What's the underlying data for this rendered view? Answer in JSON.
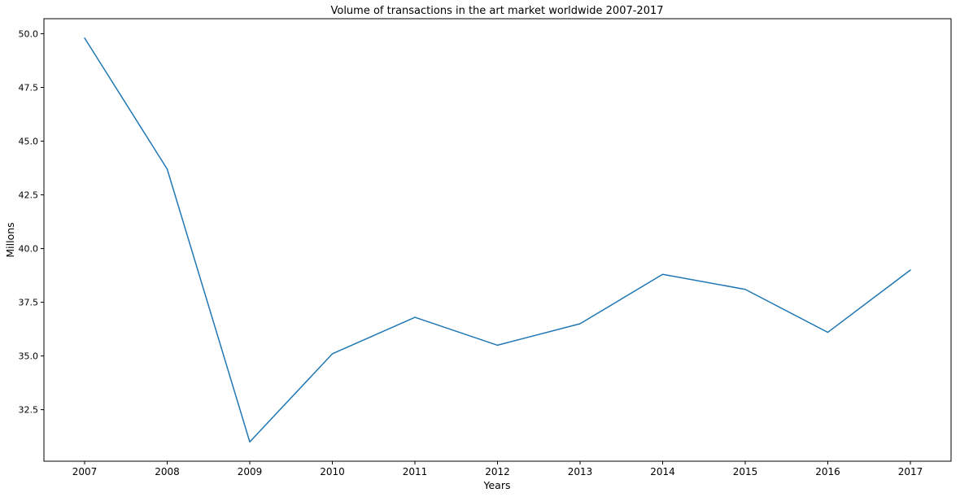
{
  "chart_data": {
    "type": "line",
    "title": "Volume of transactions in the art market worldwide 2007-2017",
    "xlabel": "Years",
    "ylabel": "Millons",
    "x": [
      "2007",
      "2008",
      "2009",
      "2010",
      "2011",
      "2012",
      "2013",
      "2014",
      "2015",
      "2016",
      "2017"
    ],
    "series": [
      {
        "values": [
          49.8,
          43.7,
          31.0,
          35.1,
          36.8,
          35.5,
          36.5,
          38.8,
          38.1,
          36.1,
          39.0
        ],
        "color": "#1f77b4"
      }
    ],
    "yticks": [
      32.5,
      35.0,
      37.5,
      40.0,
      42.5,
      45.0,
      47.5,
      50.0
    ],
    "ytick_labels": [
      "32.5",
      "35.0",
      "37.5",
      "40.0",
      "42.5",
      "45.0",
      "47.5",
      "50.0"
    ],
    "ylim": [
      30.1,
      50.7
    ],
    "grid": false,
    "legend": "none"
  }
}
